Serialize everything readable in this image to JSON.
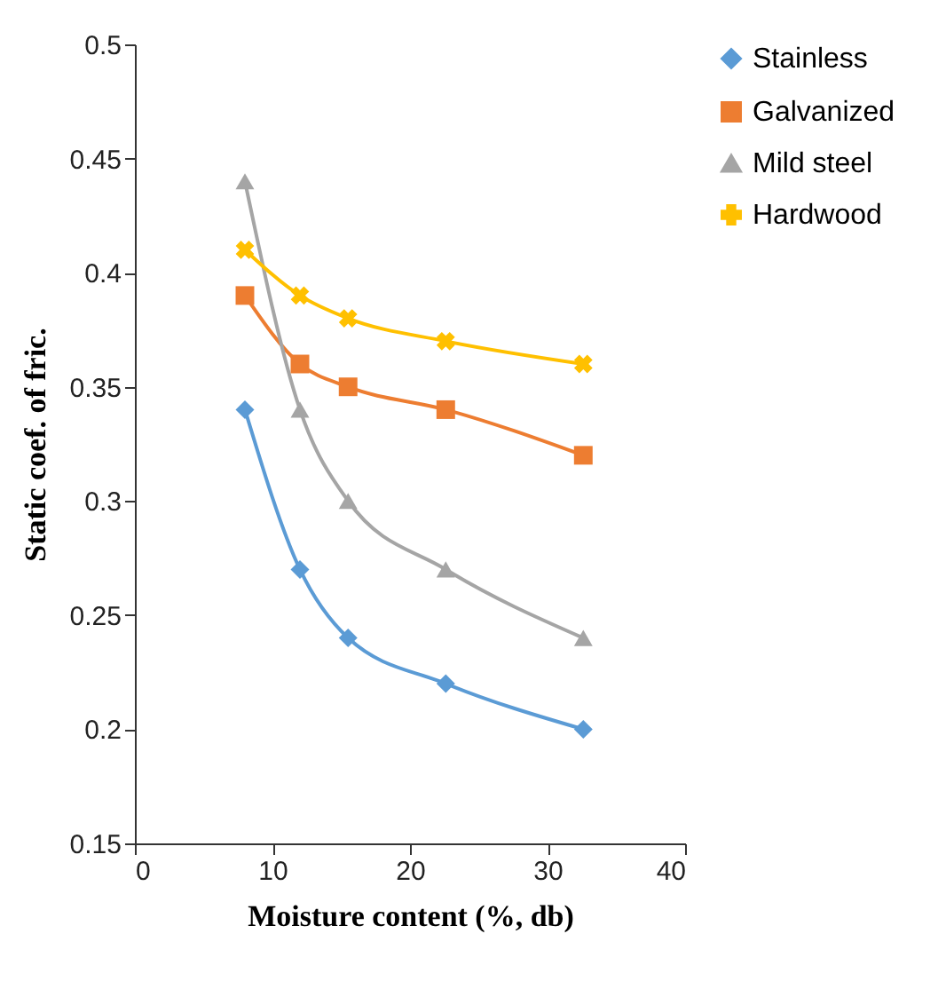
{
  "chart_data": {
    "type": "line",
    "xlabel": "Moisture content (%, db)",
    "ylabel": "Static coef. of fric.",
    "x": [
      8,
      12,
      15.5,
      22.6,
      32.6
    ],
    "series": [
      {
        "name": "Stainless",
        "color": "#5b9bd5",
        "marker": "diamond",
        "values": [
          0.34,
          0.27,
          0.24,
          0.22,
          0.2
        ]
      },
      {
        "name": "Galvanized",
        "color": "#ed7d31",
        "marker": "square",
        "values": [
          0.39,
          0.36,
          0.35,
          0.34,
          0.32
        ]
      },
      {
        "name": "Mild steel",
        "color": "#a5a5a5",
        "marker": "triangle",
        "values": [
          0.44,
          0.34,
          0.3,
          0.27,
          0.24
        ]
      },
      {
        "name": "Hardwood",
        "color": "#ffc000",
        "marker": "cross",
        "values": [
          0.41,
          0.39,
          0.38,
          0.37,
          0.36
        ]
      }
    ],
    "xlim": [
      0,
      40
    ],
    "xticks": [
      0,
      10,
      20,
      30,
      40
    ],
    "ylim": [
      0.15,
      0.5
    ],
    "yticks": [
      0.15,
      0.2,
      0.25,
      0.3,
      0.35,
      0.4,
      0.45,
      0.5
    ],
    "grid": false,
    "legend": "right"
  }
}
